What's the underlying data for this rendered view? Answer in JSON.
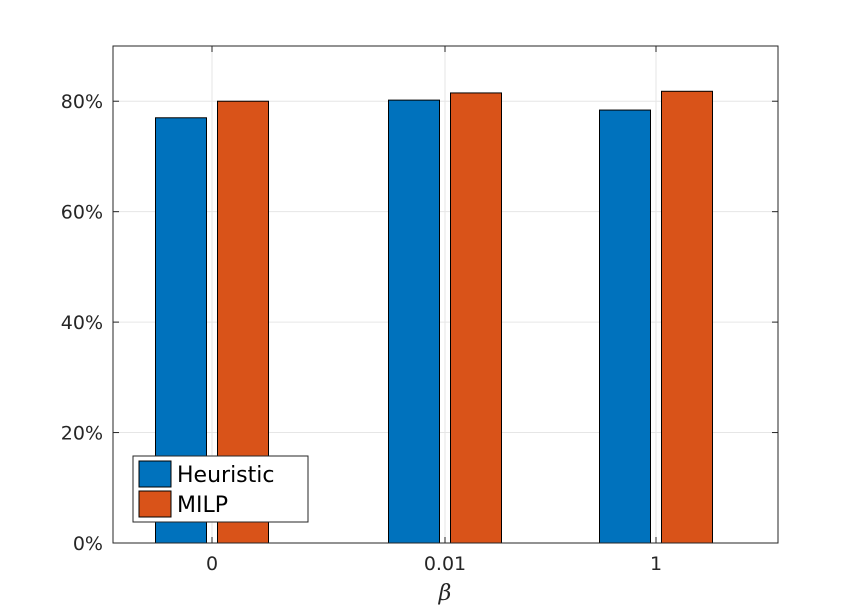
{
  "chart_data": {
    "type": "bar",
    "categories": [
      "0",
      "0.01",
      "1"
    ],
    "series": [
      {
        "name": "Heuristic",
        "color": "#0072BD",
        "values": [
          77.0,
          80.2,
          78.4
        ]
      },
      {
        "name": "MILP",
        "color": "#D95319",
        "values": [
          80.0,
          81.5,
          81.8
        ]
      }
    ],
    "xlabel": "β",
    "ylabel": "",
    "ylim": [
      0,
      90
    ],
    "yticks": [
      0,
      20,
      40,
      60,
      80
    ],
    "ytick_labels": [
      "0%",
      "20%",
      "40%",
      "60%",
      "80%"
    ],
    "grid": true,
    "legend_position": "bottom-left"
  }
}
